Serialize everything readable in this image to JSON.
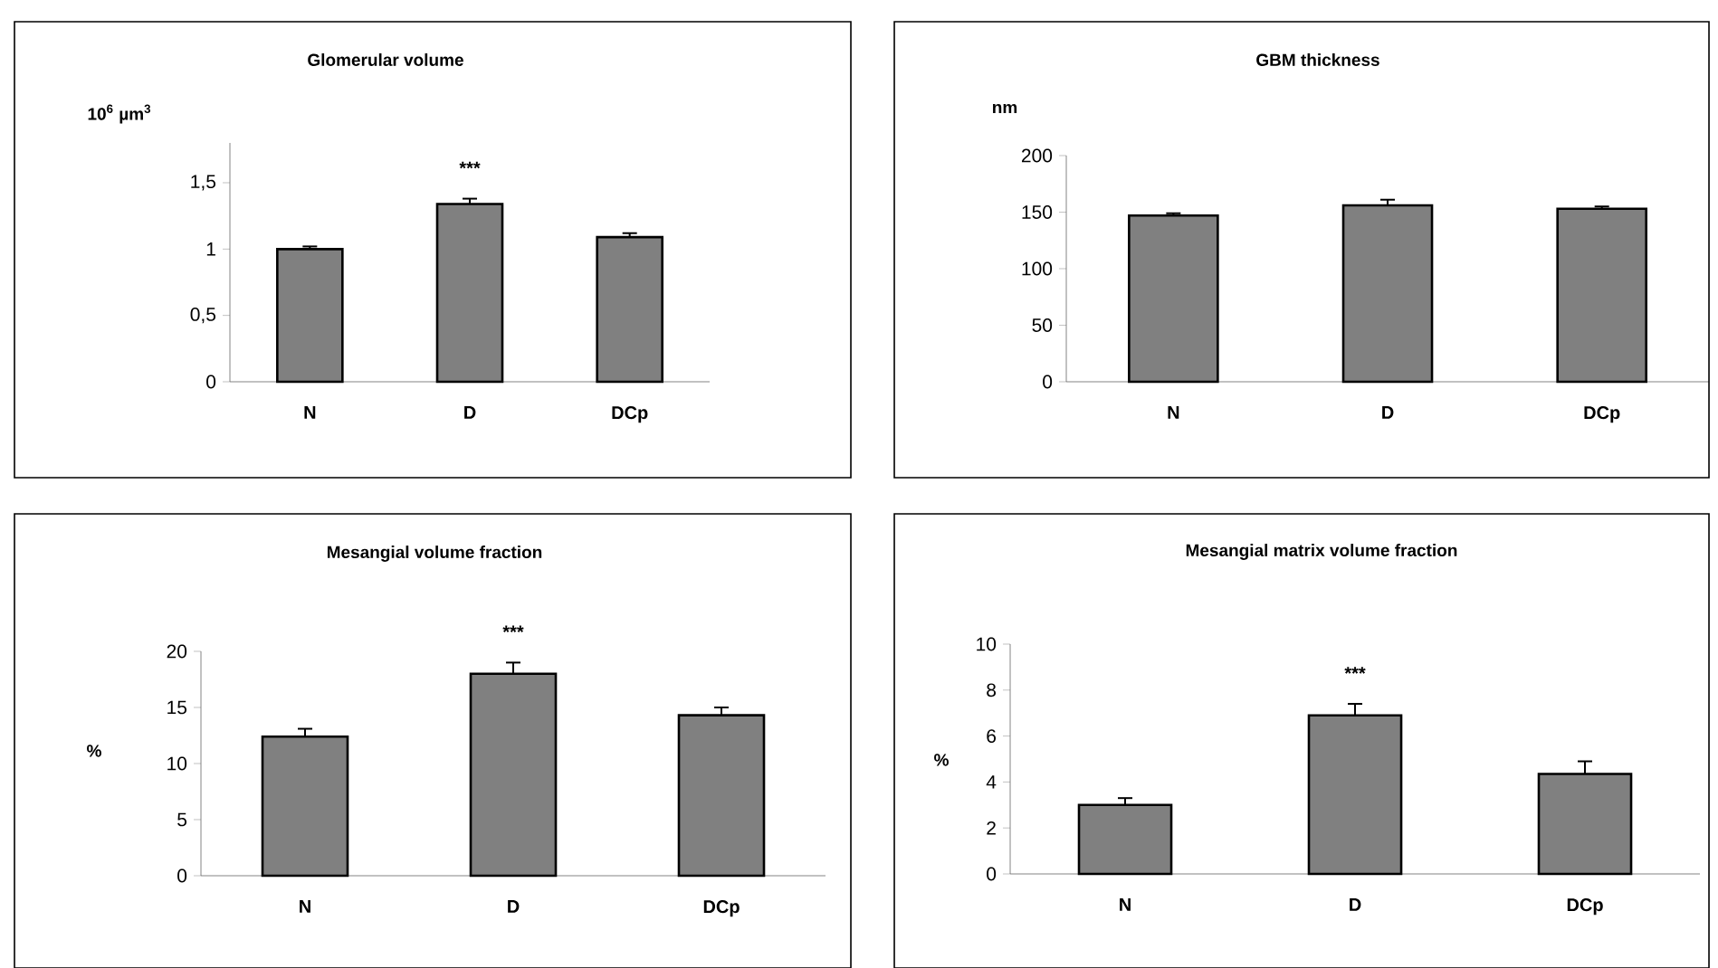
{
  "chart_data": [
    {
      "type": "bar",
      "title": "Glomerular volume",
      "ylabel": "10$^{6}$ µm$^{3}$",
      "categories": [
        "N",
        "D",
        "DCp"
      ],
      "values": [
        1.0,
        1.34,
        1.09
      ],
      "errors": [
        0.02,
        0.04,
        0.03
      ],
      "color": "#808080",
      "ylim": [
        0,
        1.8
      ],
      "yticks": [
        0,
        {
          "value": 0.5,
          "label": "0,5"
        },
        1,
        {
          "value": 1.5,
          "label": "1,5"
        }
      ],
      "annotations": [
        "***"
      ]
    },
    {
      "type": "bar",
      "title": "GBM thickness",
      "ylabel": "nm",
      "categories": [
        "N",
        "D",
        "DCp"
      ],
      "values": [
        147,
        156,
        153
      ],
      "errors": [
        2,
        5,
        2
      ],
      "color": "#808080",
      "ylim": [
        0,
        200
      ],
      "yticks": [
        0,
        50,
        100,
        150,
        200
      ]
    },
    {
      "type": "bar",
      "title": "Mesangial volume fraction",
      "ylabel": "%",
      "categories": [
        "N",
        "D",
        "DCp"
      ],
      "values": [
        12.4,
        18.0,
        14.3
      ],
      "errors": [
        0.7,
        1.0,
        0.7
      ],
      "color": "#808080",
      "ylim": [
        0,
        20
      ],
      "yticks": [
        0,
        5,
        10,
        15,
        20
      ],
      "annotations": [
        "***"
      ]
    },
    {
      "type": "bar",
      "title": "Mesangial matrix volume fraction",
      "ylabel": "%",
      "categories": [
        "N",
        "D",
        "DCp"
      ],
      "values": [
        3.0,
        6.9,
        4.35
      ],
      "errors": [
        0.3,
        0.5,
        0.55
      ],
      "color": "#808080",
      "ylim": [
        0,
        10
      ],
      "yticks": [
        0,
        2,
        4,
        6,
        8,
        10
      ],
      "annotations": [
        "***"
      ]
    }
  ]
}
